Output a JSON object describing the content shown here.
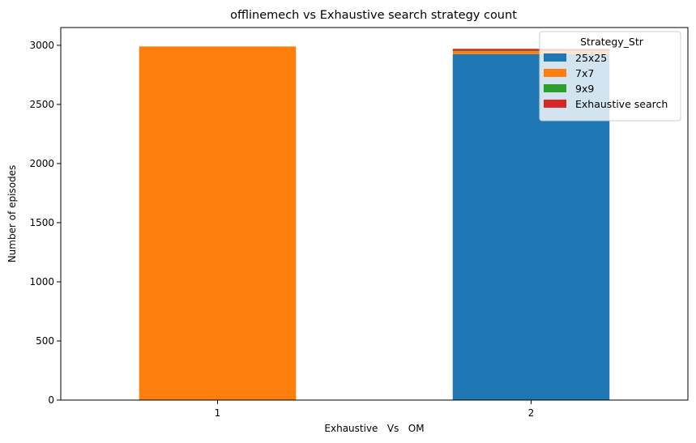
{
  "chart_data": {
    "type": "bar",
    "stacked": true,
    "title": "offlinemech vs Exhaustive search strategy count",
    "xlabel": "Exhaustive   Vs   OM",
    "ylabel": "Number of episodes",
    "categories": [
      "1",
      "2"
    ],
    "ylim": [
      0,
      3150
    ],
    "yticks": [
      0,
      500,
      1000,
      1500,
      2000,
      2500,
      3000
    ],
    "grid": false,
    "legend": {
      "title": "Strategy_Str",
      "placement": "top-right"
    },
    "series": [
      {
        "name": "25x25",
        "color": "#1f77b4",
        "values": [
          0,
          2925
        ]
      },
      {
        "name": "7x7",
        "color": "#ff7f0e",
        "values": [
          2990,
          25
        ]
      },
      {
        "name": "9x9",
        "color": "#2ca02c",
        "values": [
          0,
          5
        ]
      },
      {
        "name": "Exhaustive search",
        "color": "#d62728",
        "values": [
          0,
          15
        ]
      }
    ]
  }
}
